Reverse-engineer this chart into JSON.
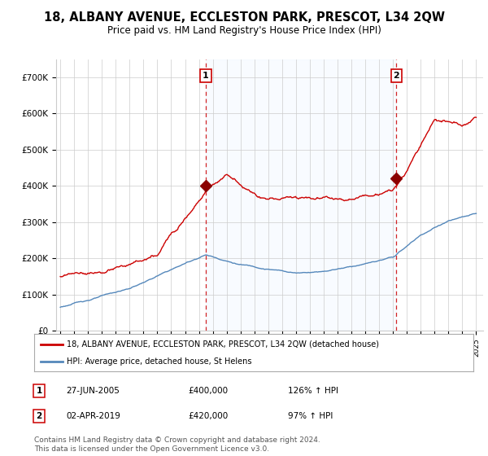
{
  "title": "18, ALBANY AVENUE, ECCLESTON PARK, PRESCOT, L34 2QW",
  "subtitle": "Price paid vs. HM Land Registry's House Price Index (HPI)",
  "title_fontsize": 10.5,
  "subtitle_fontsize": 8.5,
  "ylim": [
    0,
    750000
  ],
  "xlim_start": 1994.7,
  "xlim_end": 2025.5,
  "yticks": [
    0,
    100000,
    200000,
    300000,
    400000,
    500000,
    600000,
    700000
  ],
  "ytick_labels": [
    "£0",
    "£100K",
    "£200K",
    "£300K",
    "£400K",
    "£500K",
    "£600K",
    "£700K"
  ],
  "xticks": [
    1995,
    1996,
    1997,
    1998,
    1999,
    2000,
    2001,
    2002,
    2003,
    2004,
    2005,
    2006,
    2007,
    2008,
    2009,
    2010,
    2011,
    2012,
    2013,
    2014,
    2015,
    2016,
    2017,
    2018,
    2019,
    2020,
    2021,
    2022,
    2023,
    2024,
    2025
  ],
  "sale1_x": 2005.49,
  "sale1_y": 400000,
  "sale1_label": "1",
  "sale2_x": 2019.25,
  "sale2_y": 420000,
  "sale2_label": "2",
  "red_line_color": "#cc0000",
  "blue_line_color": "#5588bb",
  "shade_color": "#ddeeff",
  "vline_color": "#cc0000",
  "marker_color": "#8b0000",
  "background_color": "#ffffff",
  "grid_color": "#cccccc",
  "legend_red_label": "18, ALBANY AVENUE, ECCLESTON PARK, PRESCOT, L34 2QW (detached house)",
  "legend_blue_label": "HPI: Average price, detached house, St Helens",
  "table_rows": [
    {
      "num": "1",
      "date": "27-JUN-2005",
      "price": "£400,000",
      "hpi": "126% ↑ HPI"
    },
    {
      "num": "2",
      "date": "02-APR-2019",
      "price": "£420,000",
      "hpi": "97% ↑ HPI"
    }
  ],
  "footnote": "Contains HM Land Registry data © Crown copyright and database right 2024.\nThis data is licensed under the Open Government Licence v3.0.",
  "footnote_fontsize": 6.5
}
